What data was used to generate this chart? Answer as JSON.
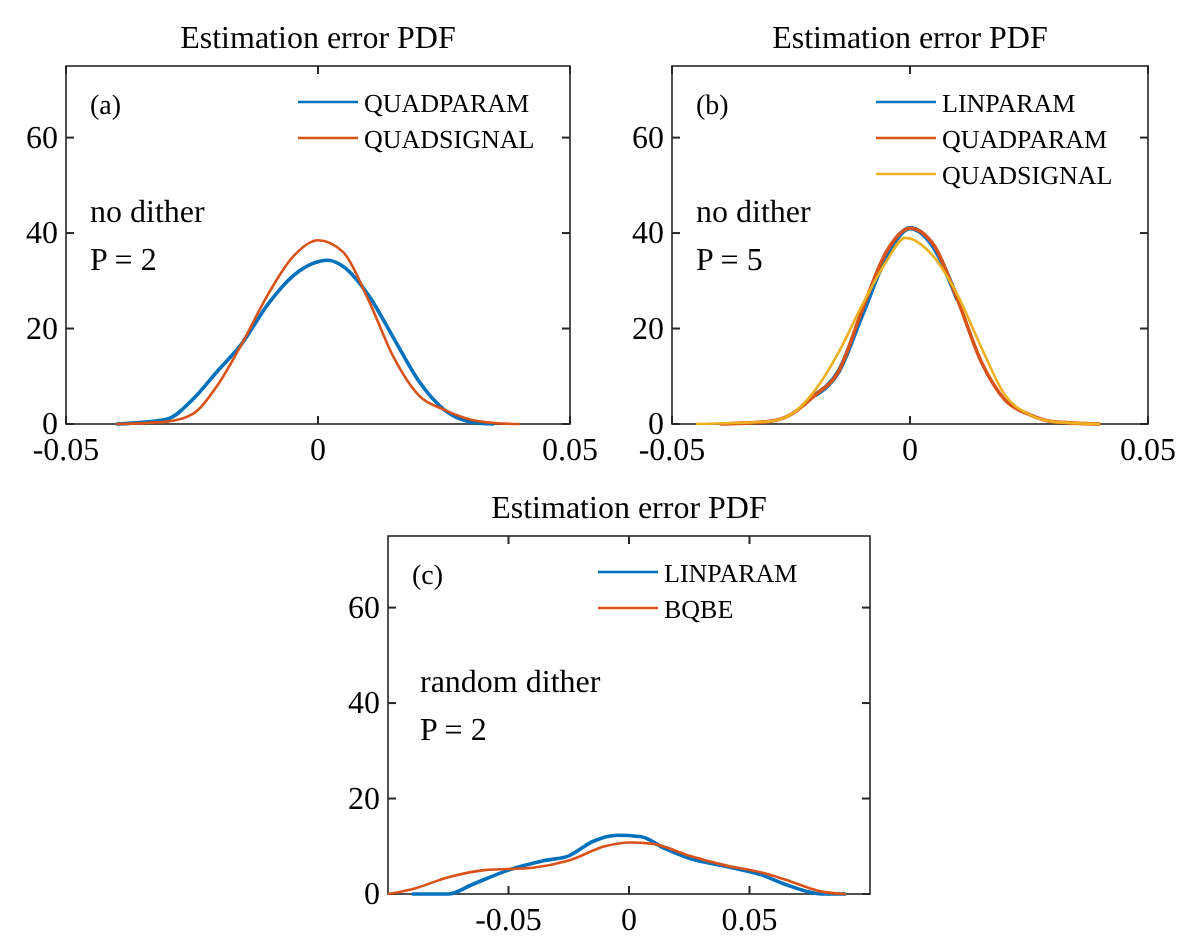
{
  "chart_data": [
    {
      "type": "line",
      "title": "Estimation error PDF",
      "annotations": [
        "(a)",
        "no dither",
        "P = 2"
      ],
      "xlim": [
        -0.05,
        0.05
      ],
      "xticks": [
        -0.05,
        0,
        0.05
      ],
      "ylim": [
        0,
        75
      ],
      "yticks": [
        0,
        20,
        40,
        60
      ],
      "grid": false,
      "legend": "top right",
      "marker": "none",
      "line_style": "solid",
      "series": [
        {
          "name": "QUADPARAM",
          "color": "#0072bd",
          "x": [
            -0.04,
            -0.03,
            -0.025,
            -0.02,
            -0.015,
            -0.01,
            -0.005,
            0,
            0.002,
            0.005,
            0.01,
            0.015,
            0.02,
            0.025,
            0.03,
            0.035
          ],
          "values": [
            0,
            1,
            5,
            11,
            17,
            25,
            31,
            34,
            34.3,
            33,
            27,
            18,
            9,
            3,
            0.5,
            0
          ]
        },
        {
          "name": "QUADSIGNAL",
          "color": "#d95319",
          "x": [
            -0.04,
            -0.03,
            -0.025,
            -0.02,
            -0.015,
            -0.01,
            -0.005,
            0,
            0.005,
            0.01,
            0.015,
            0.02,
            0.025,
            0.03,
            0.035,
            0.04
          ],
          "values": [
            0,
            0.5,
            2,
            8,
            17,
            27,
            35,
            38.5,
            36,
            26,
            14,
            6,
            3,
            1,
            0.2,
            0
          ]
        }
      ]
    },
    {
      "type": "line",
      "title": "Estimation error PDF",
      "annotations": [
        "(b)",
        "no dither",
        "P = 5"
      ],
      "xlim": [
        -0.05,
        0.05
      ],
      "xticks": [
        -0.05,
        0,
        0.05
      ],
      "ylim": [
        0,
        75
      ],
      "yticks": [
        0,
        20,
        40,
        60
      ],
      "grid": false,
      "legend": "top right",
      "marker": "none",
      "line_style": "solid",
      "series": [
        {
          "name": "LINPARAM",
          "color": "#0072bd",
          "x": [
            -0.02,
            -0.015,
            -0.01,
            -0.005,
            0,
            0.005,
            0.01
          ],
          "values": [
            6,
            11,
            23,
            35,
            41,
            37,
            26
          ]
        },
        {
          "name": "QUADPARAM",
          "color": "#d95319",
          "x": [
            -0.04,
            -0.03,
            -0.025,
            -0.02,
            -0.015,
            -0.01,
            -0.005,
            0,
            0.005,
            0.01,
            0.015,
            0.02,
            0.025,
            0.03,
            0.04
          ],
          "values": [
            0,
            0.5,
            2,
            6,
            11,
            24,
            36,
            41,
            37.5,
            26,
            13,
            5,
            2,
            0.5,
            0
          ]
        },
        {
          "name": "QUADSIGNAL",
          "color": "#edb120",
          "x": [
            -0.045,
            -0.03,
            -0.025,
            -0.02,
            -0.015,
            -0.01,
            -0.005,
            -0.001,
            0.005,
            0.01,
            0.015,
            0.02,
            0.025,
            0.03,
            0.04
          ],
          "values": [
            0,
            0.5,
            2,
            7,
            15,
            25,
            34,
            39,
            35,
            27,
            16,
            6,
            2,
            0.5,
            0
          ]
        }
      ]
    },
    {
      "type": "line",
      "title": "Estimation error PDF",
      "annotations": [
        "(c)",
        "random dither",
        "P = 2"
      ],
      "xlim": [
        -0.1,
        0.1
      ],
      "xticks": [
        -0.05,
        0,
        0.05
      ],
      "ylim": [
        0,
        75
      ],
      "yticks": [
        0,
        20,
        40,
        60
      ],
      "grid": false,
      "legend": "top right",
      "marker": "none",
      "line_style": "solid",
      "series": [
        {
          "name": "LINPARAM",
          "color": "#0072bd",
          "x": [
            -0.09,
            -0.075,
            -0.065,
            -0.05,
            -0.035,
            -0.025,
            -0.015,
            -0.005,
            0.005,
            0.015,
            0.025,
            0.04,
            0.055,
            0.065,
            0.08,
            0.09
          ],
          "values": [
            0,
            0,
            2,
            5,
            7,
            8,
            11,
            12.3,
            12,
            9.5,
            7.5,
            5.8,
            4,
            2,
            0,
            0
          ]
        },
        {
          "name": "BQBE",
          "color": "#d95319",
          "x": [
            -0.1,
            -0.09,
            -0.075,
            -0.06,
            -0.04,
            -0.025,
            -0.01,
            0,
            0.01,
            0.025,
            0.04,
            0.055,
            0.065,
            0.08,
            0.09
          ],
          "values": [
            0,
            1,
            3.5,
            5,
            5.5,
            7,
            10,
            10.8,
            10.5,
            8,
            6,
            4.5,
            3,
            0.5,
            0
          ]
        }
      ]
    }
  ]
}
